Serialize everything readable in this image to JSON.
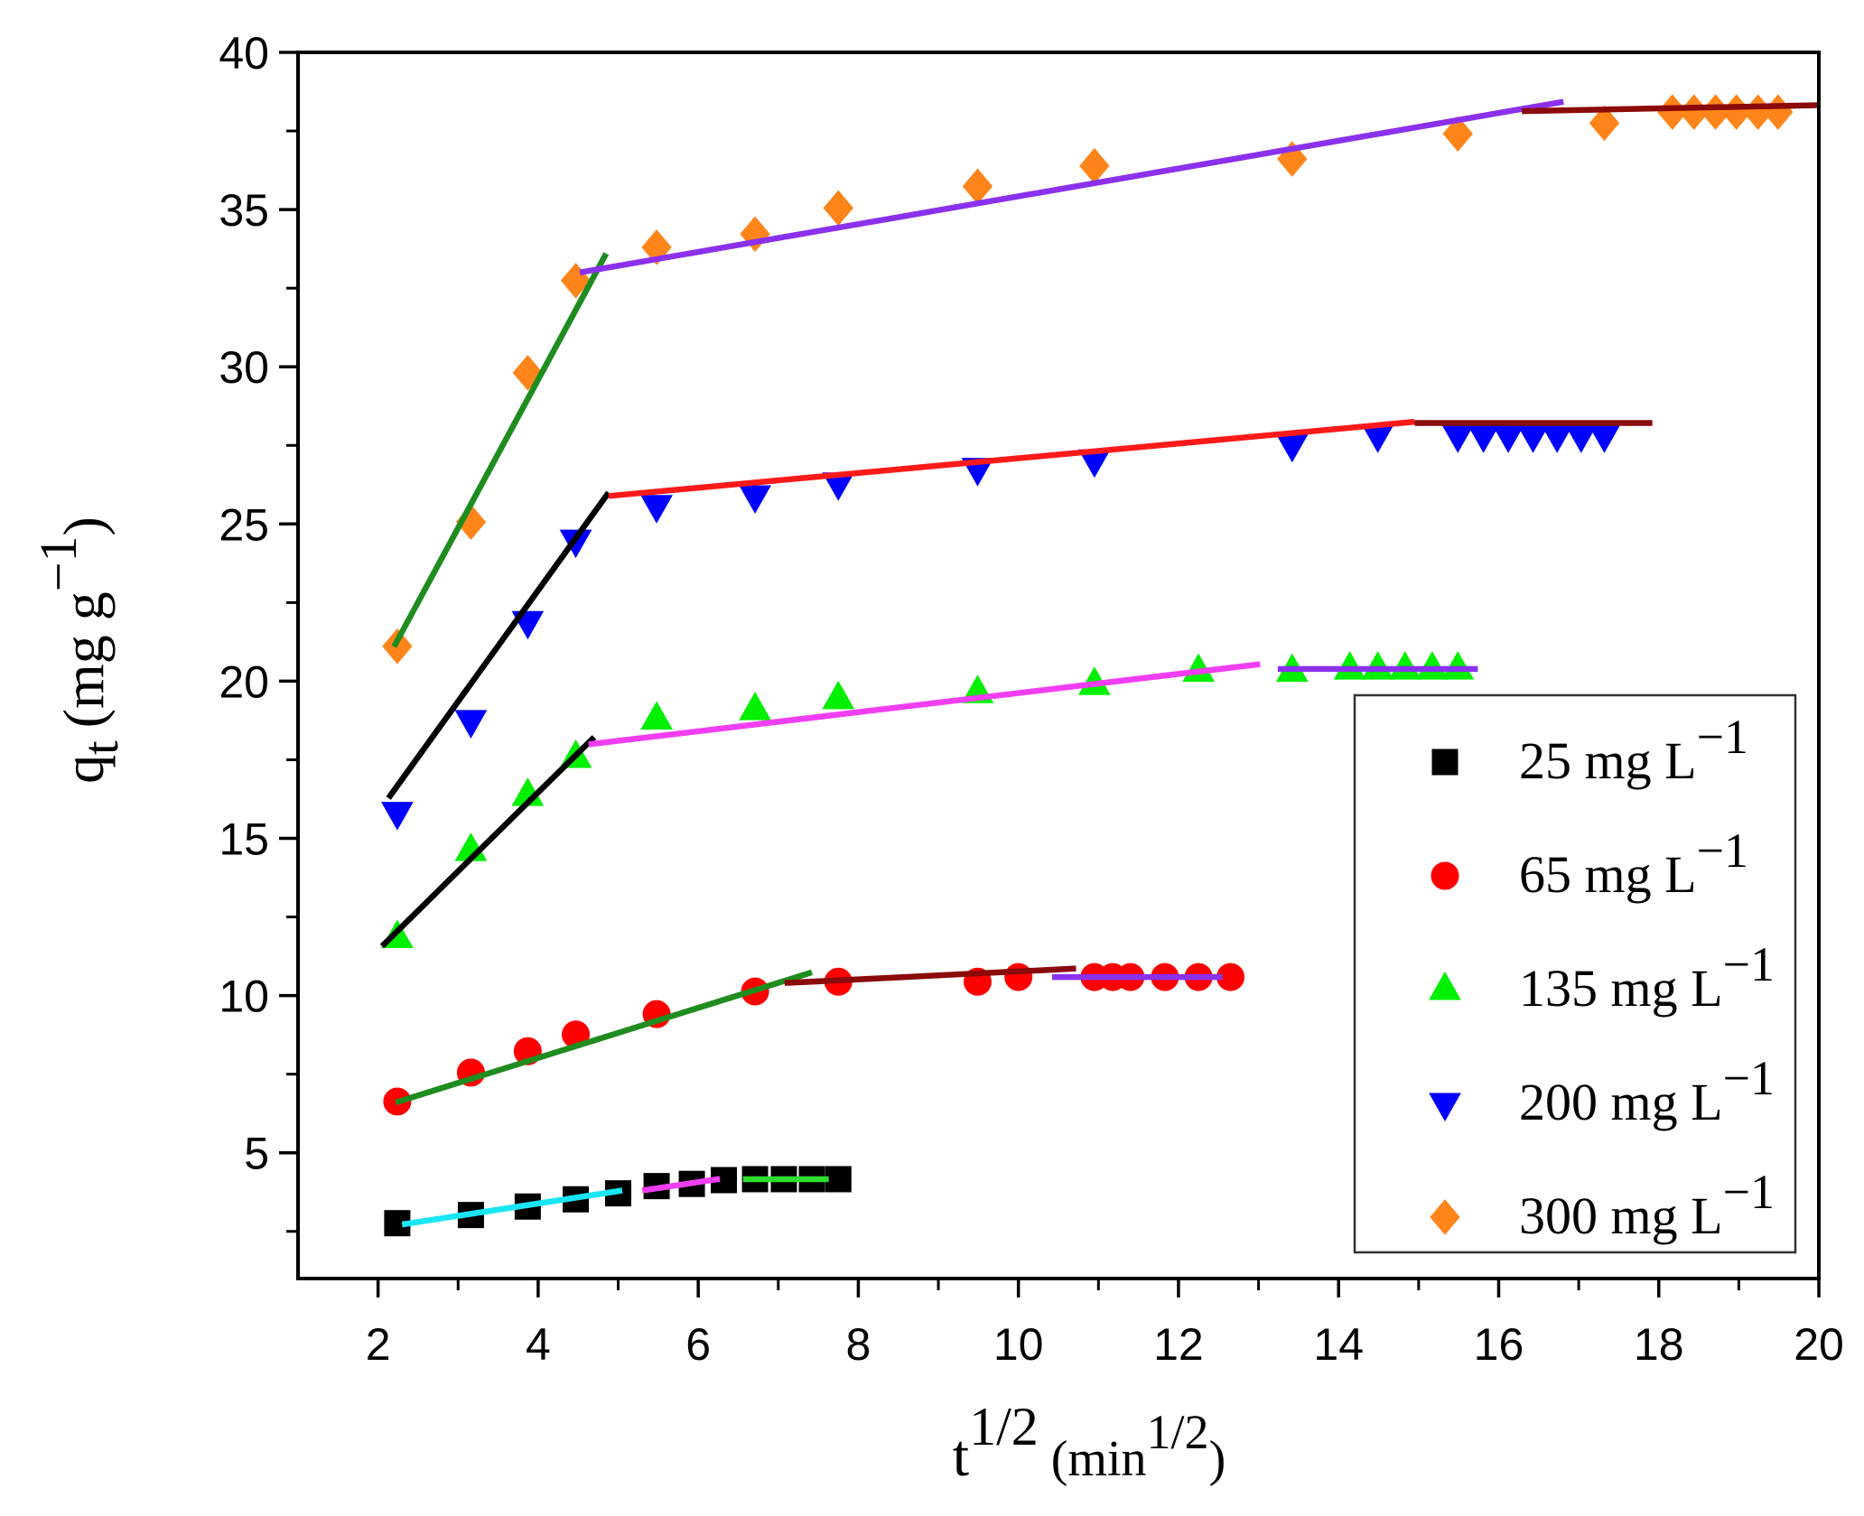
{
  "chart_data": {
    "type": "scatter",
    "xlabel": {
      "base": "t",
      "sup": "1/2",
      "unit": "(min",
      "unit_sup": "1/2",
      "close": ")"
    },
    "ylabel": {
      "base": "q",
      "sub": "t",
      "unit": "(mg g",
      "unit_sup": "−1",
      "close": ")"
    },
    "xlim": [
      1,
      20
    ],
    "ylim": [
      1,
      40
    ],
    "xticks": [
      2,
      4,
      6,
      8,
      10,
      12,
      14,
      16,
      18,
      20
    ],
    "yticks": [
      5,
      10,
      15,
      20,
      25,
      30,
      35,
      40
    ],
    "grid": false,
    "legend_position": "bottom-right",
    "series": [
      {
        "name": "25 mg L",
        "name_sup": "−1",
        "marker": "square",
        "color": "#000000",
        "x": [
          2.24,
          3.16,
          3.87,
          4.47,
          5.0,
          5.48,
          5.92,
          6.32,
          6.71,
          7.07,
          7.42,
          7.75
        ],
        "y": [
          2.76,
          3.02,
          3.29,
          3.52,
          3.71,
          3.94,
          4.01,
          4.13,
          4.16,
          4.16,
          4.16,
          4.16
        ],
        "fits": [
          {
            "x": [
              2.3,
              5.05
            ],
            "y": [
              2.72,
              3.8
            ],
            "color": "#19e6f5"
          },
          {
            "x": [
              5.3,
              6.27
            ],
            "y": [
              3.8,
              4.17
            ],
            "color": "#f23ef2"
          },
          {
            "x": [
              6.56,
              7.63
            ],
            "y": [
              4.16,
              4.16
            ],
            "color": "#2ee02e"
          }
        ]
      },
      {
        "name": "65 mg L",
        "name_sup": "−1",
        "marker": "circle",
        "color": "#ff0000",
        "x": [
          2.24,
          3.16,
          3.87,
          4.47,
          5.48,
          6.71,
          7.75,
          9.49,
          10.0,
          10.95,
          11.18,
          11.4,
          11.83,
          12.25,
          12.65
        ],
        "y": [
          6.63,
          7.55,
          8.23,
          8.76,
          9.41,
          10.13,
          10.44,
          10.44,
          10.59,
          10.59,
          10.59,
          10.59,
          10.59,
          10.59,
          10.59
        ],
        "fits": [
          {
            "x": [
              2.22,
              7.42
            ],
            "y": [
              6.6,
              10.74
            ],
            "color": "#1e8c1e"
          },
          {
            "x": [
              7.08,
              10.72
            ],
            "y": [
              10.4,
              10.86
            ],
            "color": "#8b0a0a"
          },
          {
            "x": [
              10.42,
              12.55
            ],
            "y": [
              10.59,
              10.59
            ],
            "color": "#8b31ee"
          }
        ]
      },
      {
        "name": "135 mg L",
        "name_sup": "−1",
        "marker": "triangle-up",
        "color": "#00f000",
        "x": [
          2.24,
          3.16,
          3.87,
          4.47,
          5.48,
          6.71,
          7.75,
          9.49,
          10.95,
          12.25,
          13.42,
          14.14,
          14.49,
          14.83,
          15.17,
          15.49
        ],
        "y": [
          11.84,
          14.61,
          16.36,
          17.57,
          18.79,
          19.09,
          19.44,
          19.63,
          19.89,
          20.31,
          20.31,
          20.38,
          20.38,
          20.38,
          20.38,
          20.38
        ],
        "fits": [
          {
            "x": [
              2.05,
              4.7
            ],
            "y": [
              11.57,
              18.22
            ],
            "color": "#000000"
          },
          {
            "x": [
              4.63,
              13.02
            ],
            "y": [
              17.99,
              20.54
            ],
            "color": "#f23ef2"
          },
          {
            "x": [
              13.24,
              15.74
            ],
            "y": [
              20.39,
              20.39
            ],
            "color": "#8b31ee"
          }
        ]
      },
      {
        "name": "200 mg L",
        "name_sup": "−1",
        "marker": "triangle-down",
        "color": "#0000ff",
        "x": [
          2.24,
          3.16,
          3.87,
          4.47,
          5.48,
          6.71,
          7.75,
          9.49,
          10.95,
          13.42,
          14.49,
          15.49,
          15.81,
          16.12,
          16.43,
          16.73,
          17.03,
          17.32
        ],
        "y": [
          15.83,
          18.75,
          21.9,
          24.49,
          25.59,
          25.9,
          26.31,
          26.77,
          27.04,
          27.53,
          27.83,
          27.83,
          27.83,
          27.83,
          27.83,
          27.83,
          27.83,
          27.83
        ],
        "fits": [
          {
            "x": [
              2.13,
              4.88
            ],
            "y": [
              16.28,
              26.0
            ],
            "color": "#000000"
          },
          {
            "x": [
              4.88,
              14.95
            ],
            "y": [
              25.89,
              28.25
            ],
            "color": "#ff1a1a"
          },
          {
            "x": [
              14.95,
              17.92
            ],
            "y": [
              28.21,
              28.21
            ],
            "color": "#8b0a0a"
          }
        ]
      },
      {
        "name": "300 mg L",
        "name_sup": "−1",
        "marker": "diamond",
        "color": "#ff8419",
        "x": [
          2.24,
          3.16,
          3.87,
          4.47,
          5.48,
          6.71,
          7.75,
          9.49,
          10.95,
          13.42,
          15.49,
          17.32,
          18.17,
          18.44,
          18.71,
          18.97,
          19.24,
          19.49
        ],
        "y": [
          21.11,
          25.06,
          29.81,
          32.74,
          33.8,
          34.22,
          35.05,
          35.74,
          36.39,
          36.61,
          37.41,
          37.75,
          38.1,
          38.1,
          38.1,
          38.1,
          38.1,
          38.1
        ],
        "fits": [
          {
            "x": [
              2.2,
              4.85
            ],
            "y": [
              21.1,
              33.6
            ],
            "color": "#1e8c1e"
          },
          {
            "x": [
              4.52,
              16.81
            ],
            "y": [
              33.0,
              38.43
            ],
            "color": "#8b31ee"
          },
          {
            "x": [
              16.29,
              20.0
            ],
            "y": [
              38.13,
              38.32
            ],
            "color": "#8b0a0a"
          }
        ]
      }
    ]
  }
}
